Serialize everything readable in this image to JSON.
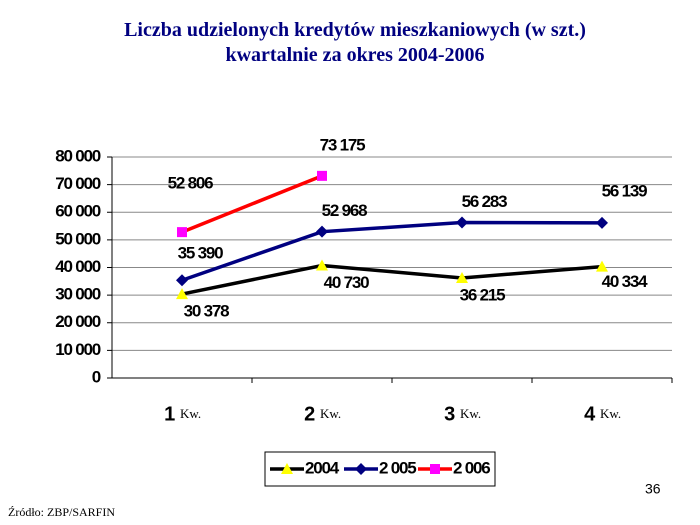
{
  "chart_data": {
    "type": "line",
    "title": "Liczba udzielonych kredytów mieszkaniowych (w szt.) kwartalnie za okres 2004-2006",
    "categories": [
      "1",
      "2",
      "3",
      "4"
    ],
    "category_suffix": "Kw.",
    "series": [
      {
        "name": "2004",
        "color": "#000000",
        "marker_color": "#ffff00",
        "marker": "triangle",
        "values": [
          30378,
          40730,
          36215,
          40334
        ],
        "value_labels": [
          "30 378",
          "40 730",
          "36 215",
          "40 334"
        ]
      },
      {
        "name": "2 005",
        "color": "#000080",
        "marker_color": "#000080",
        "marker": "diamond",
        "values": [
          35390,
          52968,
          56283,
          56139
        ],
        "value_labels": [
          "35 390",
          "52 968",
          "56 283",
          "56 139"
        ]
      },
      {
        "name": "2 006",
        "color": "#ff0000",
        "marker_color": "#ff00ff",
        "marker": "square",
        "values": [
          52806,
          73175,
          null,
          null
        ],
        "value_labels": [
          "52 806",
          "73 175",
          null,
          null
        ]
      }
    ],
    "ylim": [
      0,
      80000
    ],
    "yticks": [
      0,
      {
        "value": 10000,
        "label": "10 000"
      },
      {
        "value": 20000,
        "label": "20 000"
      },
      {
        "value": 30000,
        "label": "30 000"
      },
      {
        "value": 40000,
        "label": "40 000"
      },
      {
        "value": 50000,
        "label": "50 000"
      },
      {
        "value": 60000,
        "label": "60 000"
      },
      {
        "value": 70000,
        "label": "70 000"
      },
      {
        "value": 80000,
        "label": "80 000"
      }
    ],
    "grid": true,
    "legend": "bottom",
    "page_number": "36",
    "source": "Źródło: ZBP/SARFIN"
  }
}
